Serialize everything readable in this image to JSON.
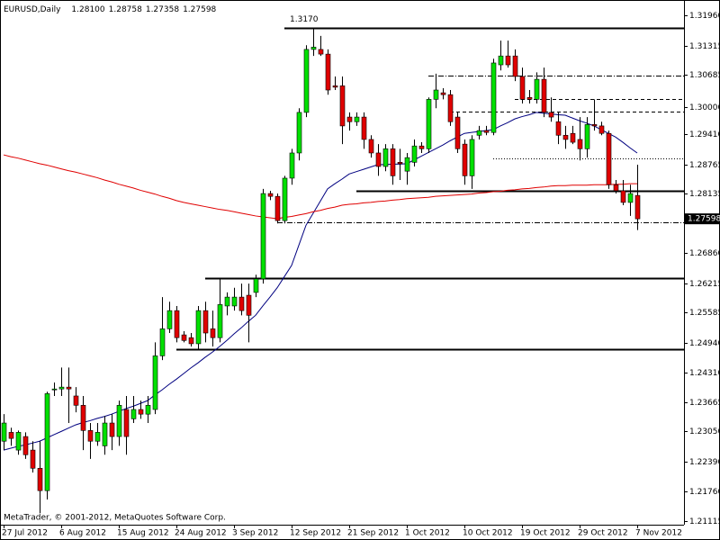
{
  "chart_data": {
    "type": "candlestick",
    "title": "EURUSD,Daily",
    "header_values": [
      {
        "value": 1.281,
        "label": "1.28100"
      },
      {
        "value": 1.28758,
        "label": "1.28758"
      },
      {
        "value": 1.27358,
        "label": "1.27358"
      },
      {
        "value": 1.27598,
        "label": "1.27598"
      }
    ],
    "watermark": "MetaTrader, © 2001-2012, MetaQuotes Software Corp.",
    "categories": [
      "27 Jul 2012",
      null,
      null,
      null,
      null,
      null,
      null,
      null,
      "6 Aug 2012",
      null,
      null,
      null,
      null,
      null,
      null,
      null,
      "15 Aug 2012",
      null,
      null,
      null,
      null,
      null,
      null,
      null,
      "24 Aug 2012",
      null,
      null,
      null,
      null,
      null,
      null,
      null,
      "3 Sep 2012",
      null,
      null,
      null,
      null,
      null,
      null,
      null,
      "12 Sep 2012",
      null,
      null,
      null,
      null,
      null,
      null,
      null,
      "21 Sep 2012",
      null,
      null,
      null,
      null,
      null,
      null,
      null,
      "1 Oct 2012",
      null,
      null,
      null,
      null,
      null,
      null,
      null,
      "10 Oct 2012",
      null,
      null,
      null,
      null,
      null,
      null,
      null,
      "19 Oct 2012",
      null,
      null,
      null,
      null,
      null,
      null,
      null,
      "29 Oct 2012",
      null,
      null,
      null,
      null,
      null,
      null,
      null,
      "7 Nov 2012"
    ],
    "open": [
      1.2283,
      1.2302,
      1.2264,
      1.2293,
      1.2264,
      1.2225,
      1.2177,
      1.2393,
      1.2395,
      1.2399,
      1.238,
      1.236,
      1.2306,
      1.2283,
      1.2273,
      1.2322,
      1.2293,
      1.2351,
      1.2331,
      1.2351,
      1.2341,
      1.2351,
      1.2466,
      1.2524,
      1.2563,
      1.2511,
      1.2505,
      1.2492,
      1.2563,
      1.2524,
      1.2505,
      1.2573,
      1.2573,
      1.2592,
      1.2596,
      1.2602,
      1.2631,
      1.2814,
      1.2808,
      1.2756,
      1.2847,
      1.2901,
      1.2988,
      1.3123,
      1.3123,
      1.3113,
      1.3045,
      1.3045,
      1.2978,
      1.2968,
      1.2978,
      1.293,
      1.2901,
      1.2872,
      1.291,
      1.2881,
      1.2862,
      1.2881,
      1.2916,
      1.291,
      1.3016,
      1.303,
      1.3026,
      1.2978,
      1.292,
      1.2852,
      1.2939,
      1.2949,
      1.2945,
      1.309,
      1.3109,
      1.3109,
      1.3065,
      1.302,
      1.3016,
      1.3059,
      1.2988,
      1.2968,
      1.2939,
      1.2943,
      1.293,
      1.291,
      1.2962,
      1.2959,
      1.2943,
      1.2833,
      1.282,
      1.2795,
      1.281
    ],
    "high": [
      1.2341,
      1.2312,
      1.2306,
      1.2302,
      1.2283,
      1.2283,
      1.2389,
      1.2409,
      1.2441,
      1.2441,
      1.2399,
      1.238,
      1.2322,
      1.2322,
      1.2337,
      1.2341,
      1.237,
      1.238,
      1.238,
      1.237,
      1.238,
      1.2495,
      1.2592,
      1.2582,
      1.2573,
      1.2519,
      1.2515,
      1.2573,
      1.2582,
      1.2563,
      1.2631,
      1.2602,
      1.2612,
      1.2621,
      1.2621,
      1.264,
      1.2824,
      1.282,
      1.2814,
      1.2852,
      1.291,
      1.2997,
      1.3132,
      1.317,
      1.3152,
      1.3123,
      1.3065,
      1.3065,
      1.2988,
      1.2988,
      1.2988,
      1.2939,
      1.292,
      1.292,
      1.292,
      1.291,
      1.2901,
      1.293,
      1.2924,
      1.302,
      1.3071,
      1.304,
      1.3036,
      1.2988,
      1.293,
      1.2939,
      1.2959,
      1.2959,
      1.3103,
      1.3142,
      1.3142,
      1.3123,
      1.3084,
      1.3036,
      1.3074,
      1.3084,
      1.302,
      1.2988,
      1.2959,
      1.2959,
      1.2978,
      1.2978,
      1.3016,
      1.2968,
      1.2949,
      1.2843,
      1.2843,
      1.2833,
      1.28758
    ],
    "low": [
      1.2264,
      1.2273,
      1.2254,
      1.2245,
      1.2216,
      1.2129,
      1.2158,
      1.238,
      1.238,
      1.2322,
      1.2345,
      1.2264,
      1.2245,
      1.2273,
      1.2254,
      1.2264,
      1.2273,
      1.2254,
      1.2322,
      1.2331,
      1.2322,
      1.2341,
      1.2457,
      1.2515,
      1.2495,
      1.2495,
      1.2486,
      1.248,
      1.2495,
      1.2486,
      1.2495,
      1.2553,
      1.2563,
      1.2553,
      1.2495,
      1.2592,
      1.2621,
      1.28,
      1.275,
      1.275,
      1.2833,
      1.2885,
      1.2978,
      1.3109,
      1.3109,
      1.3026,
      1.3036,
      1.292,
      1.2949,
      1.2959,
      1.291,
      1.2891,
      1.2852,
      1.2862,
      1.2833,
      1.2843,
      1.2833,
      1.2872,
      1.2901,
      1.2901,
      1.2997,
      1.3016,
      1.2959,
      1.2901,
      1.2833,
      1.2824,
      1.293,
      1.2939,
      1.2939,
      1.3078,
      1.3084,
      1.3055,
      1.3007,
      1.3007,
      1.3007,
      1.2978,
      1.2968,
      1.292,
      1.291,
      1.292,
      1.2885,
      1.2891,
      1.2949,
      1.2939,
      1.2824,
      1.2814,
      1.2789,
      1.2766,
      1.27358
    ],
    "close": [
      1.2322,
      1.2289,
      1.2302,
      1.2254,
      1.2225,
      1.2177,
      1.2385,
      1.2395,
      1.2399,
      1.2395,
      1.236,
      1.2306,
      1.2283,
      1.2302,
      1.2322,
      1.2293,
      1.236,
      1.2293,
      1.2351,
      1.2341,
      1.236,
      1.2466,
      1.2524,
      1.2563,
      1.2505,
      1.2499,
      1.2492,
      1.2563,
      1.2515,
      1.2505,
      1.2576,
      1.2592,
      1.2592,
      1.2563,
      1.2553,
      1.2631,
      1.2814,
      1.2808,
      1.2756,
      1.2847,
      1.2901,
      1.2988,
      1.3123,
      1.3128,
      1.3113,
      1.3036,
      1.3042,
      1.2959,
      1.2968,
      1.2978,
      1.293,
      1.2901,
      1.2872,
      1.291,
      1.2852,
      1.2878,
      1.2891,
      1.2916,
      1.291,
      1.3016,
      1.3036,
      1.3026,
      1.2968,
      1.291,
      1.2852,
      1.293,
      1.2949,
      1.2945,
      1.3094,
      1.3109,
      1.309,
      1.3065,
      1.3016,
      1.3016,
      1.3059,
      1.2988,
      1.2978,
      1.2939,
      1.293,
      1.2924,
      1.291,
      1.2962,
      1.2959,
      1.2943,
      1.2833,
      1.282,
      1.2795,
      1.2814,
      1.27598
    ],
    "up_color": "#00e000",
    "down_color": "#e00000",
    "series": [
      {
        "color": "#000080",
        "values": [
          1.2264,
          1.2268,
          1.2272,
          1.2275,
          1.2279,
          1.2283,
          1.229,
          1.2297,
          1.2304,
          1.2311,
          1.2318,
          1.2323,
          1.2327,
          1.2332,
          1.2336,
          1.2341,
          1.2347,
          1.2353,
          1.2358,
          1.2364,
          1.237,
          1.2382,
          1.2393,
          1.2405,
          1.2416,
          1.2428,
          1.244,
          1.2451,
          1.2463,
          1.2474,
          1.2486,
          1.2499,
          1.2513,
          1.2526,
          1.254,
          1.2553,
          1.2573,
          1.2592,
          1.2612,
          1.2636,
          1.266,
          1.2703,
          1.2746,
          1.2772,
          1.2798,
          1.2824,
          1.2835,
          1.2845,
          1.2856,
          1.2861,
          1.2866,
          1.2871,
          1.2876,
          1.2876,
          1.2877,
          1.2877,
          1.2878,
          1.2886,
          1.2894,
          1.2902,
          1.291,
          1.2918,
          1.2927,
          1.2935,
          1.2943,
          1.2945,
          1.2947,
          1.2949,
          1.2951,
          1.2959,
          1.2966,
          1.2974,
          1.2979,
          1.2983,
          1.2988,
          1.2986,
          1.2985,
          1.2983,
          1.2982,
          1.2976,
          1.297,
          1.2965,
          1.2959,
          1.2951,
          1.2943,
          1.2935,
          1.2924,
          1.2912,
          1.2901
        ]
      },
      {
        "color": "#e00000",
        "values": [
          1.2897,
          1.2893,
          1.289,
          1.2886,
          1.2882,
          1.2878,
          1.2875,
          1.2871,
          1.2867,
          1.2863,
          1.286,
          1.2856,
          1.2852,
          1.2848,
          1.2843,
          1.2839,
          1.2834,
          1.283,
          1.2826,
          1.2821,
          1.2817,
          1.2813,
          1.2808,
          1.2804,
          1.2799,
          1.2795,
          1.2792,
          1.2789,
          1.2786,
          1.2783,
          1.278,
          1.2778,
          1.2775,
          1.2772,
          1.2769,
          1.2766,
          1.2764,
          1.2762,
          1.276,
          1.2763,
          1.2765,
          1.2768,
          1.2771,
          1.2775,
          1.2778,
          1.2782,
          1.2785,
          1.2789,
          1.2791,
          1.2792,
          1.2794,
          1.2795,
          1.2797,
          1.2798,
          1.28,
          1.2801,
          1.2803,
          1.2804,
          1.2805,
          1.2806,
          1.2808,
          1.2809,
          1.281,
          1.2811,
          1.2812,
          1.2813,
          1.2815,
          1.2816,
          1.2818,
          1.2819,
          1.2821,
          1.2822,
          1.2824,
          1.2825,
          1.2827,
          1.2828,
          1.283,
          1.2831,
          1.2831,
          1.2832,
          1.2832,
          1.2832,
          1.2833,
          1.2833,
          1.2833,
          1.2834,
          1.2834,
          1.2835,
          1.2835
        ]
      }
    ],
    "levels": [
      {
        "value": 1.317,
        "label": "1.3170",
        "style": "solid"
      },
      {
        "value": 1.282,
        "style": "solid"
      },
      {
        "value": 1.2632,
        "style": "solid"
      },
      {
        "value": 1.248,
        "style": "solid"
      },
      {
        "value": 1.3067,
        "style": "dashdot"
      },
      {
        "value": 1.3016,
        "style": "dashed"
      },
      {
        "value": 1.299,
        "style": "dashed"
      },
      {
        "value": 1.2889,
        "style": "dotted"
      },
      {
        "value": 1.2752,
        "style": "dashdot"
      }
    ],
    "ylim": [
      1.2104,
      1.3229
    ],
    "yticks": [
      {
        "value": 1.3196,
        "label": "1.31960"
      },
      {
        "value": 1.31315,
        "label": "1.31315"
      },
      {
        "value": 1.30685,
        "label": "1.30685"
      },
      {
        "value": 1.3,
        "label": "1.30000"
      },
      {
        "value": 1.2941,
        "label": "1.29410"
      },
      {
        "value": 1.28765,
        "label": "1.28765"
      },
      {
        "value": 1.28135,
        "label": "1.28135"
      },
      {
        "value": 1.2686,
        "label": "1.26860"
      },
      {
        "value": 1.26215,
        "label": "1.26215"
      },
      {
        "value": 1.25585,
        "label": "1.25585"
      },
      {
        "value": 1.2494,
        "label": "1.24940"
      },
      {
        "value": 1.2431,
        "label": "1.24310"
      },
      {
        "value": 1.23665,
        "label": "1.23665"
      },
      {
        "value": 1.2305,
        "label": "1.23050"
      },
      {
        "value": 1.2239,
        "label": "1.22390"
      },
      {
        "value": 1.2176,
        "label": "1.21760"
      },
      {
        "value": 1.21115,
        "label": "1.21115"
      }
    ]
  }
}
